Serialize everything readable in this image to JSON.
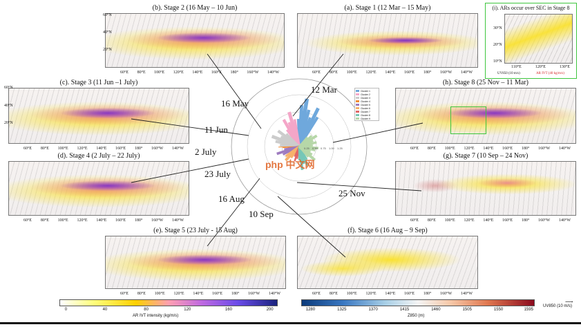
{
  "panels": {
    "stage2": {
      "title": "(b). Stage 2 (16 May – 10 Jun)"
    },
    "stage1": {
      "title": "(a). Stage 1 (12 Mar – 15 May)"
    },
    "inset": {
      "title": "(i). ARs occur over SEC in Stage 8",
      "lat": [
        "30°N",
        "20°N",
        "10°N"
      ],
      "lon": [
        "110°E",
        "120°E",
        "130°E"
      ],
      "uv_label": "UV850 (10 m/s)",
      "ivt_label": "AR IVT (40 kg/m/s)"
    },
    "stage3": {
      "title": "(c). Stage 3 (11 Jun –1 July)"
    },
    "stage8": {
      "title": "(h). Stage 8 (25 Nov – 11 Mar)"
    },
    "stage4": {
      "title": "(d). Stage 4 (2 July – 22 July)"
    },
    "stage7": {
      "title": "(g). Stage 7 (10 Sep – 24 Nov)"
    },
    "stage5": {
      "title": "(e). Stage 5 (23 July - 15 Aug)"
    },
    "stage6": {
      "title": "(f). Stage 6 (16 Aug – 9 Sep)"
    }
  },
  "lat_labels": [
    "60°N",
    "40°N",
    "20°N",
    "0°"
  ],
  "lon_labels": [
    "60°E",
    "80°E",
    "100°E",
    "120°E",
    "140°E",
    "160°E",
    "180°",
    "160°W",
    "140°W"
  ],
  "polar": {
    "stage_labels": [
      "12 Mar",
      "16 May",
      "11 Jun",
      "2 July",
      "23 July",
      "16 Aug",
      "10 Sep",
      "25 Nov"
    ],
    "ring_labels": [
      "0.25",
      "0.50",
      "0.75",
      "1.00",
      "1.25"
    ],
    "legend": [
      {
        "name": "Cluster 1",
        "color": "#6fa8dc"
      },
      {
        "name": "Cluster 2",
        "color": "#f4a6c8"
      },
      {
        "name": "Cluster 3",
        "color": "#cccccc"
      },
      {
        "name": "Cluster 4",
        "color": "#f28b30"
      },
      {
        "name": "Cluster 5",
        "color": "#9e7bbf"
      },
      {
        "name": "Cluster 6",
        "color": "#f6b26b"
      },
      {
        "name": "Cluster 7",
        "color": "#e06666"
      },
      {
        "name": "Cluster 8",
        "color": "#76c7b7"
      },
      {
        "name": "Cluster 9",
        "color": "#b6d7a8"
      }
    ],
    "watermark": "php 中文网"
  },
  "colorbar_ivt": {
    "ticks": [
      "0",
      "40",
      "80",
      "120",
      "160",
      "200"
    ],
    "label": "AR IVT intensity (kg/m/s)"
  },
  "colorbar_z": {
    "ticks": [
      "1280",
      "1325",
      "1370",
      "1415",
      "1460",
      "1505",
      "1550",
      "1595"
    ],
    "label": "Z850 (m)"
  },
  "uv_legend": "UV850 (10 m/s)"
}
